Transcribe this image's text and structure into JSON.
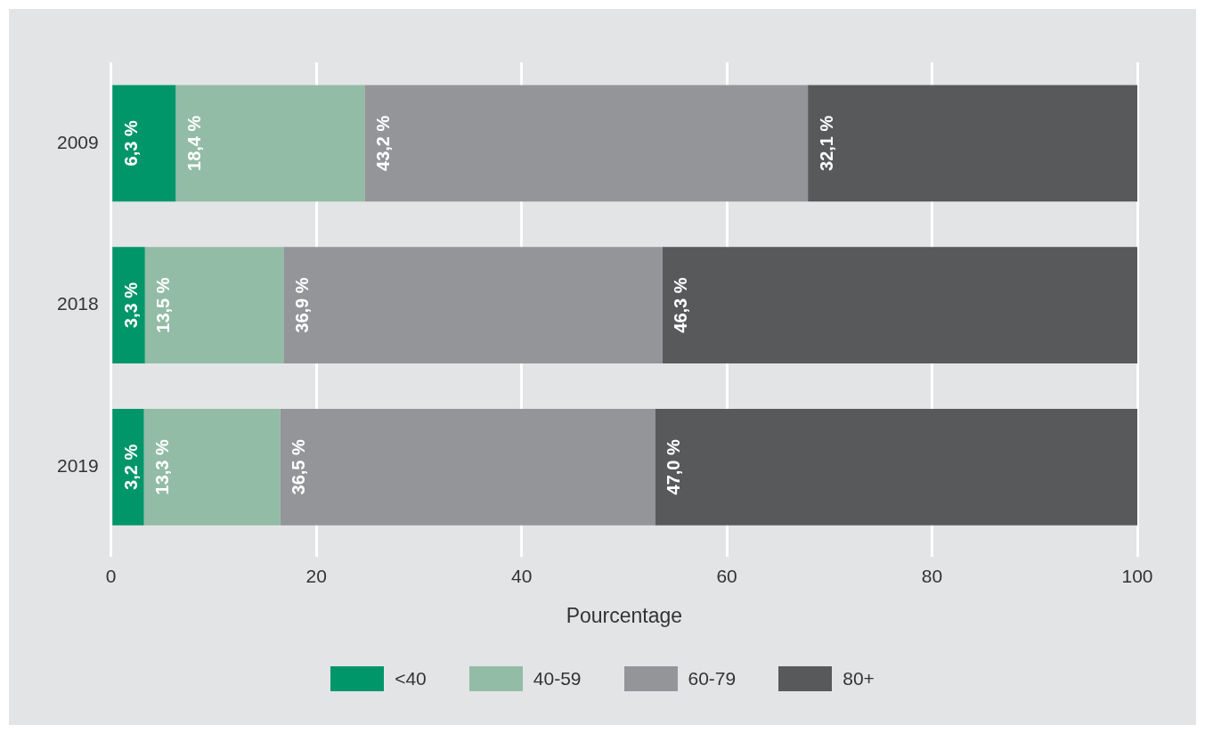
{
  "chart_data": {
    "type": "bar",
    "orientation": "horizontal",
    "stacked": true,
    "xlabel": "Pourcentage",
    "categories": [
      "2009",
      "2018",
      "2019"
    ],
    "series": [
      {
        "name": "<40",
        "color": "#009669",
        "values": [
          6.3,
          3.3,
          3.2
        ],
        "value_labels": [
          "6,3 %",
          "3,3 %",
          "3,2 %"
        ]
      },
      {
        "name": "40-59",
        "color": "#93bca6",
        "values": [
          18.4,
          13.5,
          13.3
        ],
        "value_labels": [
          "18,4 %",
          "13,5 %",
          "13,3 %"
        ]
      },
      {
        "name": "60-79",
        "color": "#939598",
        "values": [
          43.2,
          36.9,
          36.5
        ],
        "value_labels": [
          "43,2 %",
          "36,9 %",
          "36,5 %"
        ]
      },
      {
        "name": "80+",
        "color": "#58595b",
        "values": [
          32.1,
          46.3,
          47.0
        ],
        "value_labels": [
          "32,1 %",
          "46,3 %",
          "47,0 %"
        ]
      }
    ],
    "xlim": [
      0,
      100
    ],
    "xticks": [
      0,
      20,
      40,
      60,
      80,
      100
    ],
    "grid": "x",
    "legend": "bottom"
  }
}
